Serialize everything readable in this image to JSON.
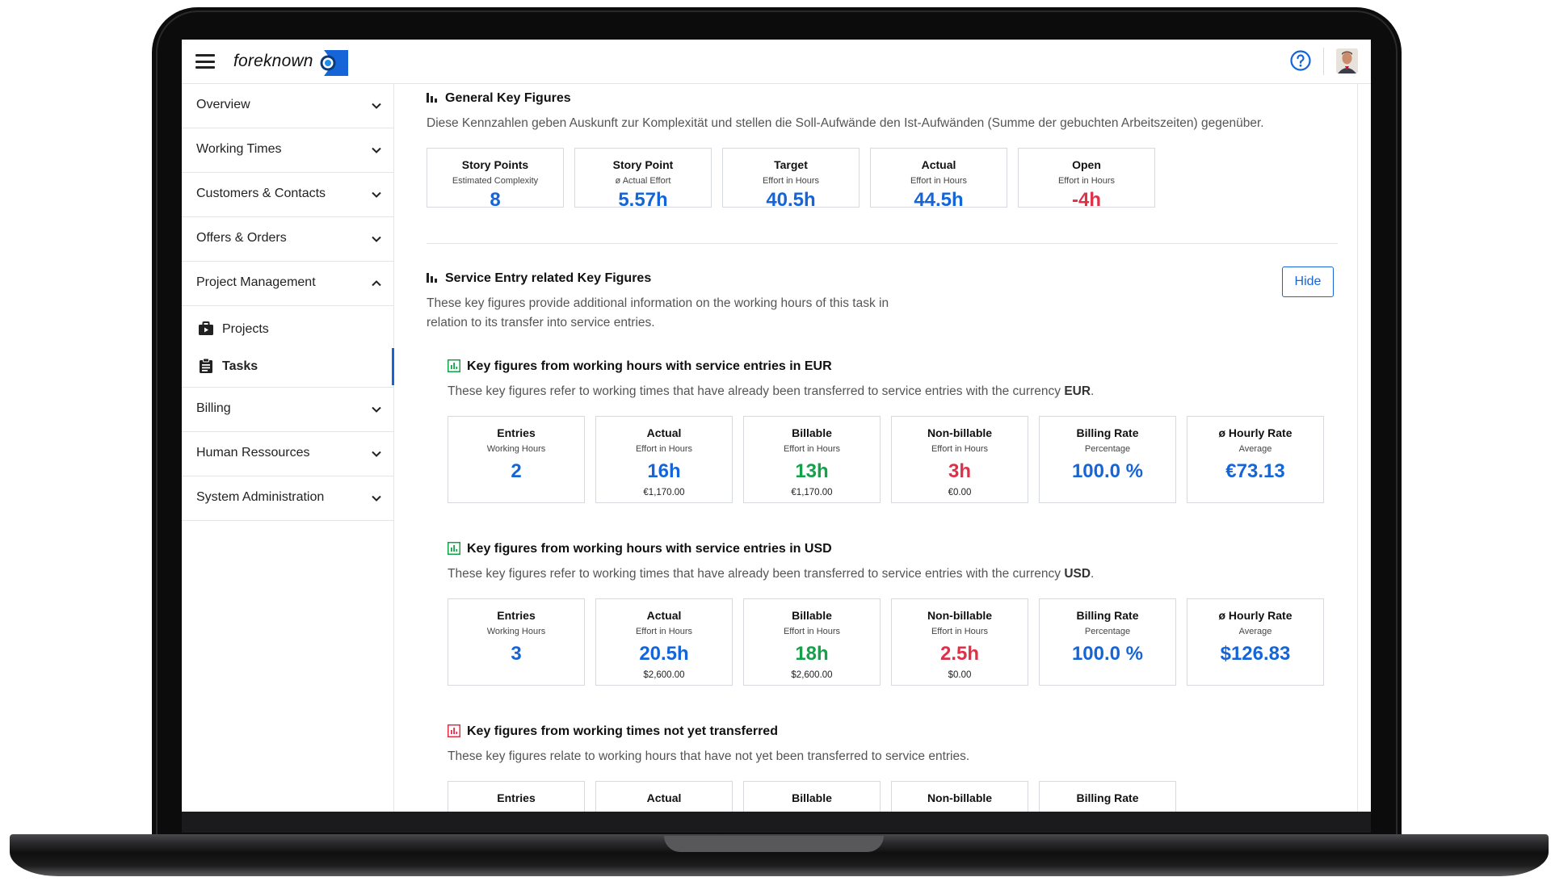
{
  "app": {
    "name": "foreknown"
  },
  "colors": {
    "accent": "#1565d8",
    "positive": "#14a14a",
    "negative": "#e03047",
    "border": "#d6d9dd"
  },
  "header": {
    "icons": [
      "menu-icon",
      "help-icon",
      "avatar"
    ]
  },
  "sidebar": {
    "items": [
      {
        "label": "Overview",
        "state": "collapsed"
      },
      {
        "label": "Working Times",
        "state": "collapsed"
      },
      {
        "label": "Customers & Contacts",
        "state": "collapsed"
      },
      {
        "label": "Offers & Orders",
        "state": "collapsed"
      },
      {
        "label": "Project Management",
        "state": "expanded"
      },
      {
        "label": "Billing",
        "state": "collapsed"
      },
      {
        "label": "Human Ressources",
        "state": "collapsed"
      },
      {
        "label": "System Administration",
        "state": "collapsed"
      }
    ],
    "subitems": [
      {
        "label": "Projects",
        "icon": "projects-icon"
      },
      {
        "label": "Tasks",
        "icon": "tasks-icon",
        "active": true
      }
    ]
  },
  "general": {
    "title": "General Key Figures",
    "description": "Diese Kennzahlen geben Auskunft zur Komplexität und stellen die Soll-Aufwände den Ist-Aufwänden (Summe der gebuchten Arbeitszeiten) gegenüber.",
    "cards": [
      {
        "title": "Story Points",
        "subtitle": "Estimated Complexity",
        "value": "8"
      },
      {
        "title": "Story Point",
        "subtitle": "ø Actual Effort",
        "value": "5.57h"
      },
      {
        "title": "Target",
        "subtitle": "Effort in Hours",
        "value": "40.5h"
      },
      {
        "title": "Actual",
        "subtitle": "Effort in Hours",
        "value": "44.5h"
      },
      {
        "title": "Open",
        "subtitle": "Effort in Hours",
        "value": "-4h"
      }
    ]
  },
  "service": {
    "title": "Service Entry related Key Figures",
    "description_line1": "These key figures provide additional information on the working hours of this task in",
    "description_line2": "relation to its transfer into service entries.",
    "hide_label": "Hide"
  },
  "eur": {
    "title": "Key figures from working hours with service entries in EUR",
    "desc_prefix": "These key figures refer to working times that have already been transferred to service entries with the currency ",
    "desc_currency": "EUR",
    "desc_suffix": ".",
    "cards": [
      {
        "title": "Entries",
        "subtitle": "Working Hours",
        "value": "2",
        "money": ""
      },
      {
        "title": "Actual",
        "subtitle": "Effort in Hours",
        "value": "16h",
        "money": "€1,170.00"
      },
      {
        "title": "Billable",
        "subtitle": "Effort in Hours",
        "value": "13h",
        "money": "€1,170.00"
      },
      {
        "title": "Non-billable",
        "subtitle": "Effort in Hours",
        "value": "3h",
        "money": "€0.00"
      },
      {
        "title": "Billing Rate",
        "subtitle": "Percentage",
        "value": "100.0 %",
        "money": ""
      },
      {
        "title": "ø Hourly Rate",
        "subtitle": "Average",
        "value": "€73.13",
        "money": ""
      }
    ]
  },
  "usd": {
    "title": "Key figures from working hours with service entries in USD",
    "desc_prefix": "These key figures refer to working times that have already been transferred to service entries with the currency ",
    "desc_currency": "USD",
    "desc_suffix": ".",
    "cards": [
      {
        "title": "Entries",
        "subtitle": "Working Hours",
        "value": "3",
        "money": ""
      },
      {
        "title": "Actual",
        "subtitle": "Effort in Hours",
        "value": "20.5h",
        "money": "$2,600.00"
      },
      {
        "title": "Billable",
        "subtitle": "Effort in Hours",
        "value": "18h",
        "money": "$2,600.00"
      },
      {
        "title": "Non-billable",
        "subtitle": "Effort in Hours",
        "value": "2.5h",
        "money": "$0.00"
      },
      {
        "title": "Billing Rate",
        "subtitle": "Percentage",
        "value": "100.0 %",
        "money": ""
      },
      {
        "title": "ø Hourly Rate",
        "subtitle": "Average",
        "value": "$126.83",
        "money": ""
      }
    ]
  },
  "pending": {
    "title": "Key figures from working times not yet transferred",
    "description": "These key figures relate to working hours that have not yet been transferred to service entries.",
    "cards": [
      {
        "title": "Entries"
      },
      {
        "title": "Actual"
      },
      {
        "title": "Billable"
      },
      {
        "title": "Non-billable"
      },
      {
        "title": "Billing Rate"
      }
    ]
  }
}
